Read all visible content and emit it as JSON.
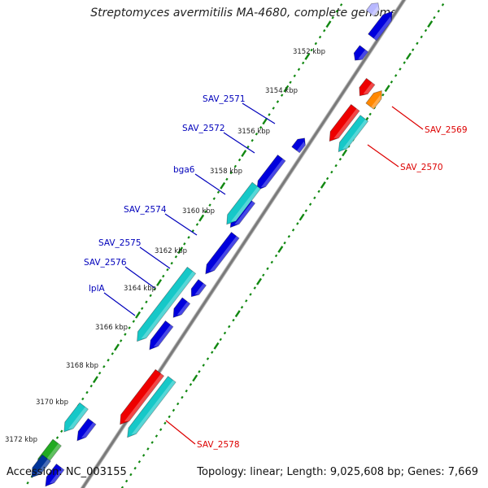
{
  "title": "Streptomyces avermitilis MA-4680, complete genome",
  "footer": {
    "accession": "Accession: NC_003155",
    "summary": "Topology: linear; Length: 9,025,608 bp; Genes: 7,669"
  },
  "colors": {
    "blue": "#0000dd",
    "cyan": "#16c8c8",
    "red": "#ee0000",
    "orange": "#ff8800",
    "green": "#22aa22",
    "backbone": "#7a7a7a",
    "tick": "#118811",
    "left_label": "#0000bb",
    "right_label": "#dd0000"
  },
  "scale": {
    "labels": [
      "3152 kbp",
      "3154 kbp",
      "3156 kbp",
      "3158 kbp",
      "3160 kbp",
      "3162 kbp",
      "3164 kbp",
      "3166 kbp",
      "3168 kbp",
      "3170 kbp",
      "3172 kbp"
    ]
  },
  "gene_labels_left": [
    "SAV_2571",
    "SAV_2572",
    "bga6",
    "SAV_2574",
    "SAV_2575",
    "SAV_2576",
    "lplA"
  ],
  "gene_labels_right": [
    "SAV_2569",
    "SAV_2570",
    "SAV_2578"
  ]
}
